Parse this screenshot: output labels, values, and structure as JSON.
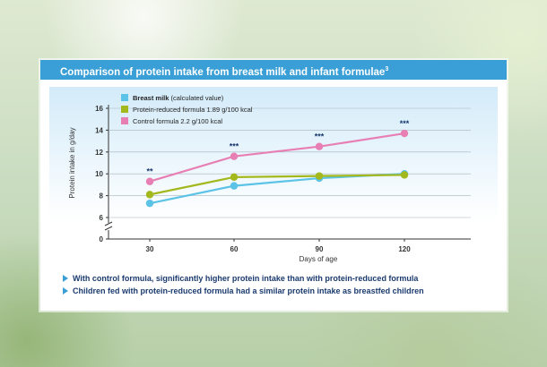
{
  "header": {
    "title": "Comparison of protein intake from breast milk and infant formulae",
    "ref": "3"
  },
  "chart_data": {
    "type": "line",
    "x": [
      30,
      60,
      90,
      120
    ],
    "xlabel": "Days of age",
    "ylabel": "Protein intake in g/day",
    "yticks": [
      "16",
      "14",
      "12",
      "10",
      "8",
      "6",
      "0"
    ],
    "xticks": [
      "30",
      "60",
      "90",
      "120"
    ],
    "ylim": [
      6,
      16
    ],
    "y_break": true,
    "series": [
      {
        "name_bold": "Breast milk",
        "name_rest": " (calculated value)",
        "color": "#5bc3e6",
        "values": [
          7.3,
          8.9,
          9.6,
          10.0
        ]
      },
      {
        "name_bold": "",
        "name_rest": "Protein-reduced formula 1.89 g/100 kcal",
        "color": "#a3b81c",
        "values": [
          8.1,
          9.7,
          9.8,
          9.9
        ]
      },
      {
        "name_bold": "",
        "name_rest": "Control formula 2.2 g/100 kcal",
        "color": "#e87fb4",
        "values": [
          9.3,
          11.6,
          12.5,
          13.7
        ]
      }
    ],
    "significance": [
      "**",
      "***",
      "***",
      "***"
    ],
    "legend_position": "top-left"
  },
  "notes": [
    "With control formula, significantly higher protein intake than with protein-reduced formula",
    "Children fed with protein-reduced formula had a similar protein intake as breastfed children"
  ]
}
